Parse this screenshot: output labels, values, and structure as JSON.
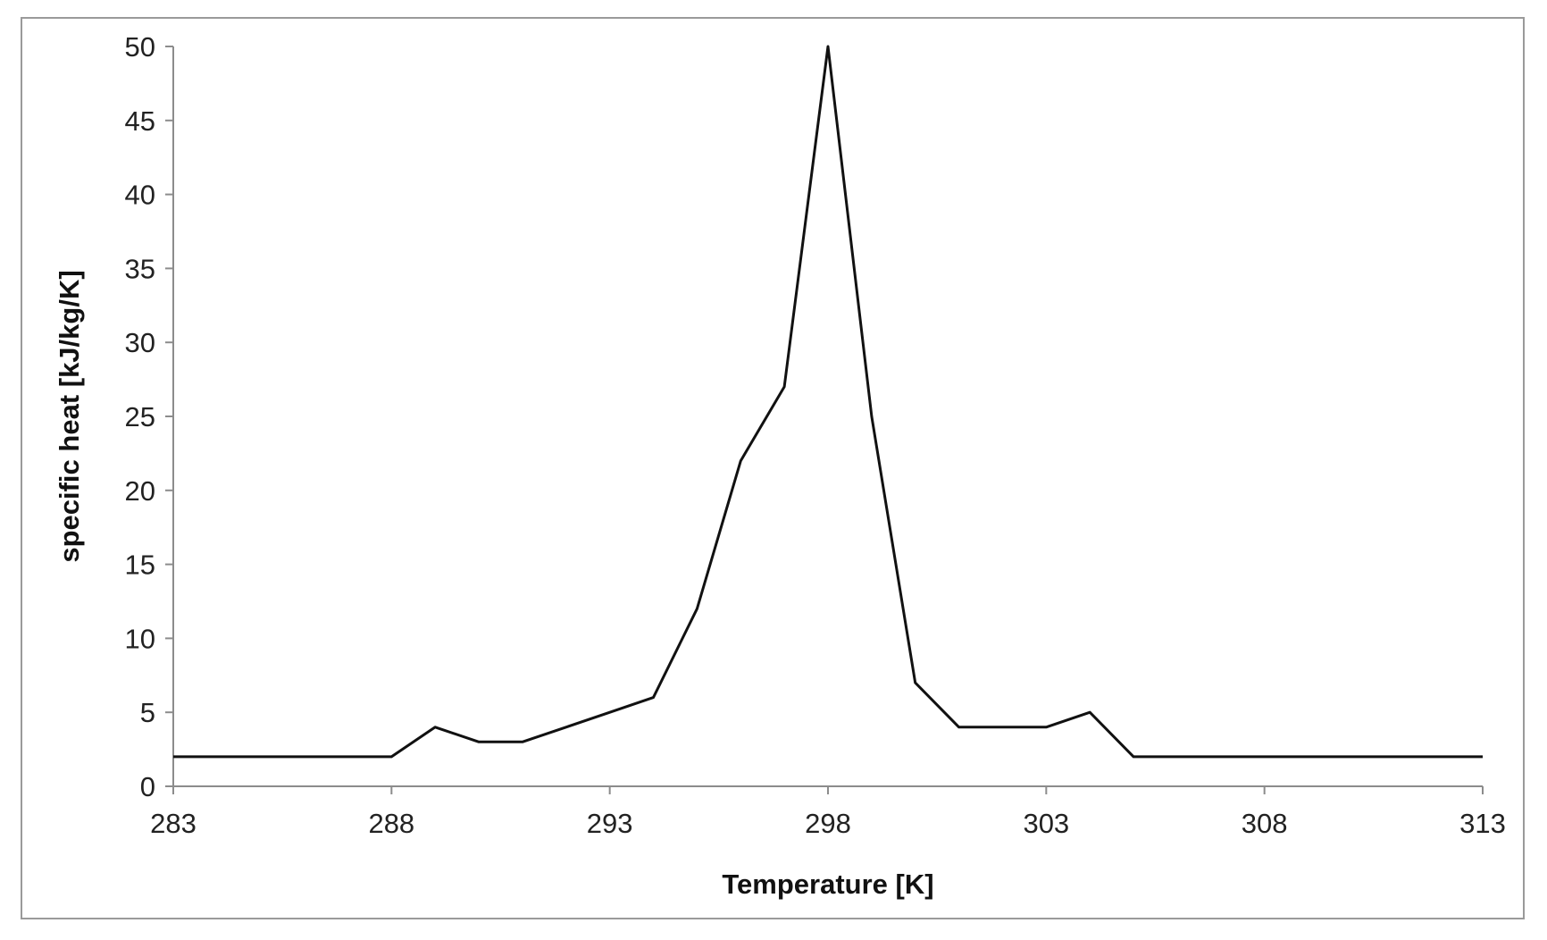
{
  "chart_data": {
    "type": "line",
    "title": "",
    "xlabel": "Temperature [K]",
    "ylabel": "specific heat [kJ/kg/K]",
    "xlim": [
      283,
      313
    ],
    "ylim": [
      0,
      50
    ],
    "x_ticks": [
      283,
      288,
      293,
      298,
      303,
      308,
      313
    ],
    "y_ticks": [
      0,
      5,
      10,
      15,
      20,
      25,
      30,
      35,
      40,
      45,
      50
    ],
    "grid": false,
    "legend": "none",
    "series": [
      {
        "color": "#111111",
        "x": [
          283,
          284,
          285,
          286,
          287,
          288,
          289,
          290,
          291,
          292,
          293,
          294,
          295,
          296,
          297,
          298,
          299,
          300,
          301,
          302,
          303,
          304,
          305,
          306,
          307,
          308,
          309,
          310,
          311,
          312,
          313
        ],
        "values": [
          2,
          2,
          2,
          2,
          2,
          2,
          4,
          3,
          3,
          4,
          5,
          6,
          12,
          22,
          27,
          50,
          25,
          7,
          4,
          4,
          4,
          5,
          2,
          2,
          2,
          2,
          2,
          2,
          2,
          2,
          2
        ]
      }
    ]
  }
}
